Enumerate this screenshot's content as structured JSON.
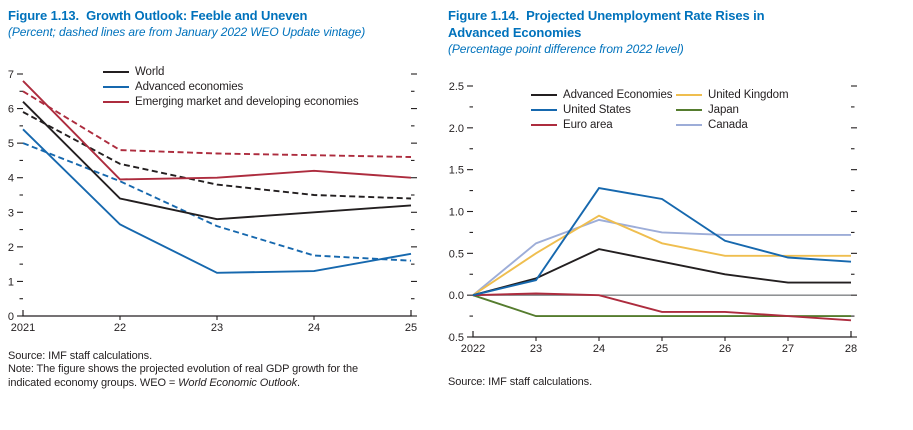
{
  "figure_left": {
    "label": "Figure 1.13.",
    "title": "Growth Outlook: Feeble and Uneven",
    "subtitle": "(Percent; dashed lines are from January 2022 WEO Update vintage)",
    "source": "Source: IMF staff calculations.",
    "note_prefix": "Note: The figure shows the projected evolution of real GDP growth for the indicated economy groups. WEO = ",
    "note_italic": "World Economic Outlook",
    "note_suffix": "."
  },
  "figure_right": {
    "label": "Figure 1.14.",
    "title_line1": "Projected Unemployment Rate Rises in",
    "title_line2": "Advanced Economies",
    "subtitle": "(Percentage point difference from 2022 level)",
    "source": "Source: IMF staff calculations."
  },
  "colors": {
    "title_blue": "#0072bc",
    "axis_black": "#231f20",
    "line_black": "#231f20",
    "line_blue": "#1668ae",
    "line_red": "#ad2c3e",
    "line_yellow": "#efbe4f",
    "line_green": "#557c2e",
    "line_periwinkle": "#9dadd8",
    "zero_line_gray": "#7f8285"
  },
  "chart_data": [
    {
      "id": "fig113",
      "type": "line",
      "title": "Figure 1.13. Growth Outlook: Feeble and Uneven",
      "subtitle_units": "Percent; dashed lines are from January 2022 WEO Update vintage",
      "categories": [
        "2021",
        "22",
        "23",
        "24",
        "25"
      ],
      "ylim": [
        0,
        7
      ],
      "y_minor": 0.5,
      "grid": false,
      "legend_position": "top-left-inside",
      "zero_line": false,
      "axis_color": "#231f20",
      "y_ticks": [
        {
          "v": 0,
          "label": "0"
        },
        {
          "v": 1,
          "label": "1"
        },
        {
          "v": 2,
          "label": "2"
        },
        {
          "v": 3,
          "label": "3"
        },
        {
          "v": 4,
          "label": "4"
        },
        {
          "v": 5,
          "label": "5"
        },
        {
          "v": 6,
          "label": "6"
        },
        {
          "v": 7,
          "label": "7"
        }
      ],
      "series": [
        {
          "name": "World",
          "color": "#231f20",
          "style": "solid",
          "legend": true,
          "z": 5,
          "values": [
            6.2,
            3.4,
            2.8,
            3.0,
            3.2
          ]
        },
        {
          "name": "Advanced economies",
          "color": "#1668ae",
          "style": "solid",
          "legend": true,
          "z": 6,
          "values": [
            5.4,
            2.65,
            1.25,
            1.3,
            1.8
          ]
        },
        {
          "name": "Emerging market and developing economies",
          "color": "#ad2c3e",
          "style": "solid",
          "legend": true,
          "z": 4,
          "values": [
            6.8,
            3.95,
            4.0,
            4.2,
            4.0
          ]
        },
        {
          "name": "World (January 2022 WEO Update vintage)",
          "color": "#231f20",
          "style": "dashed",
          "legend": false,
          "z": 2,
          "values": [
            5.9,
            4.4,
            3.8,
            3.5,
            3.4
          ]
        },
        {
          "name": "Advanced economies (January 2022 WEO Update vintage)",
          "color": "#1668ae",
          "style": "dashed",
          "legend": false,
          "z": 1,
          "values": [
            5.0,
            3.9,
            2.6,
            1.75,
            1.6
          ]
        },
        {
          "name": "Emerging market and developing economies (January 2022 WEO Update vintage)",
          "color": "#ad2c3e",
          "style": "dashed",
          "legend": false,
          "z": 3,
          "values": [
            6.5,
            4.8,
            4.7,
            4.65,
            4.6
          ]
        }
      ]
    },
    {
      "id": "fig114",
      "type": "line",
      "title": "Figure 1.14. Projected Unemployment Rate Rises in Advanced Economies",
      "subtitle_units": "Percentage point difference from 2022 level",
      "categories": [
        "2022",
        "23",
        "24",
        "25",
        "26",
        "27",
        "28"
      ],
      "ylim": [
        -0.5,
        2.5
      ],
      "y_minor": 0.25,
      "grid": false,
      "legend_position": "top-inside-two-columns",
      "zero_line": true,
      "zero_line_color": "#7f8285",
      "axis_color": "#231f20",
      "y_ticks": [
        {
          "v": 2.5,
          "label": "2.5"
        },
        {
          "v": 2.0,
          "label": "2.0"
        },
        {
          "v": 1.5,
          "label": "1.5"
        },
        {
          "v": 1.0,
          "label": "1.0"
        },
        {
          "v": 0.5,
          "label": "0.5"
        },
        {
          "v": 0.0,
          "label": "0.0"
        },
        {
          "v": -0.5,
          "label": "–0.5"
        }
      ],
      "series": [
        {
          "name": "Advanced Economies",
          "color": "#231f20",
          "style": "solid",
          "legend": true,
          "z": 5,
          "values": [
            0,
            0.2,
            0.55,
            0.4,
            0.25,
            0.15,
            0.15
          ]
        },
        {
          "name": "United States",
          "color": "#1668ae",
          "style": "solid",
          "legend": true,
          "z": 6,
          "values": [
            0,
            0.18,
            1.28,
            1.15,
            0.65,
            0.45,
            0.4
          ]
        },
        {
          "name": "Euro area",
          "color": "#ad2c3e",
          "style": "solid",
          "legend": true,
          "z": 4,
          "values": [
            0,
            0.02,
            0.0,
            -0.2,
            -0.2,
            -0.25,
            -0.3
          ]
        },
        {
          "name": "United Kingdom",
          "color": "#efbe4f",
          "style": "solid",
          "legend": true,
          "z": 2,
          "values": [
            0,
            0.5,
            0.95,
            0.62,
            0.47,
            0.47,
            0.47
          ]
        },
        {
          "name": "Japan",
          "color": "#557c2e",
          "style": "solid",
          "legend": true,
          "z": 3,
          "values": [
            0,
            -0.25,
            -0.25,
            -0.25,
            -0.25,
            -0.25,
            -0.25
          ]
        },
        {
          "name": "Canada",
          "color": "#9dadd8",
          "style": "solid",
          "legend": true,
          "z": 1,
          "values": [
            0,
            0.62,
            0.9,
            0.75,
            0.72,
            0.72,
            0.72
          ]
        }
      ]
    }
  ]
}
